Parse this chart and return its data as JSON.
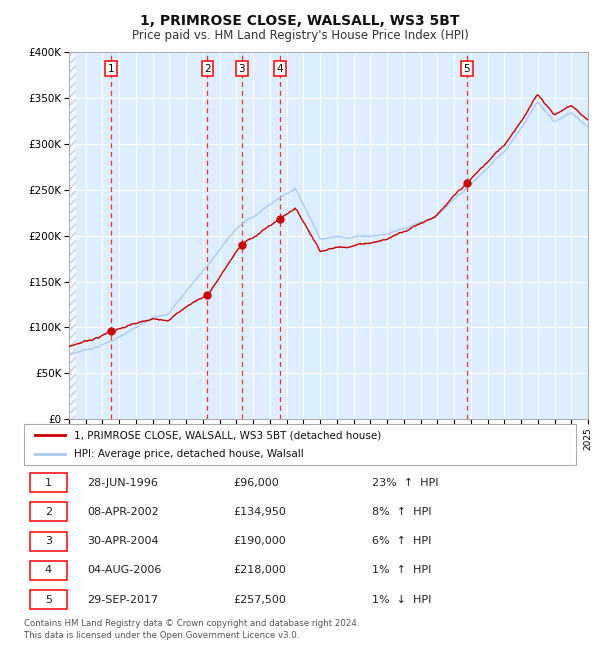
{
  "title": "1, PRIMROSE CLOSE, WALSALL, WS3 5BT",
  "subtitle": "Price paid vs. HM Land Registry's House Price Index (HPI)",
  "title_fontsize": 10,
  "subtitle_fontsize": 8.5,
  "background_color": "#ffffff",
  "plot_bg_color": "#ddeeff",
  "grid_color": "#ffffff",
  "x_start_year": 1994,
  "x_end_year": 2025,
  "y_min": 0,
  "y_max": 400000,
  "y_ticks": [
    0,
    50000,
    100000,
    150000,
    200000,
    250000,
    300000,
    350000,
    400000
  ],
  "y_tick_labels": [
    "£0",
    "£50K",
    "£100K",
    "£150K",
    "£200K",
    "£250K",
    "£300K",
    "£350K",
    "£400K"
  ],
  "sales": [
    {
      "label": "1",
      "date_str": "28-JUN-1996",
      "year": 1996.49,
      "price": 96000,
      "hpi_pct": "23%",
      "direction": "↑"
    },
    {
      "label": "2",
      "date_str": "08-APR-2002",
      "year": 2002.27,
      "price": 134950,
      "hpi_pct": "8%",
      "direction": "↑"
    },
    {
      "label": "3",
      "date_str": "30-APR-2004",
      "year": 2004.33,
      "price": 190000,
      "hpi_pct": "6%",
      "direction": "↑"
    },
    {
      "label": "4",
      "date_str": "04-AUG-2006",
      "year": 2006.59,
      "price": 218000,
      "hpi_pct": "1%",
      "direction": "↑"
    },
    {
      "label": "5",
      "date_str": "29-SEP-2017",
      "year": 2017.75,
      "price": 257500,
      "hpi_pct": "1%",
      "direction": "↓"
    }
  ],
  "hpi_line_color": "#aaccee",
  "price_line_color": "#cc0000",
  "dot_color": "#cc0000",
  "dashed_line_color": "#ee3333",
  "legend_label_price": "1, PRIMROSE CLOSE, WALSALL, WS3 5BT (detached house)",
  "legend_label_hpi": "HPI: Average price, detached house, Walsall",
  "footer": "Contains HM Land Registry data © Crown copyright and database right 2024.\nThis data is licensed under the Open Government Licence v3.0."
}
